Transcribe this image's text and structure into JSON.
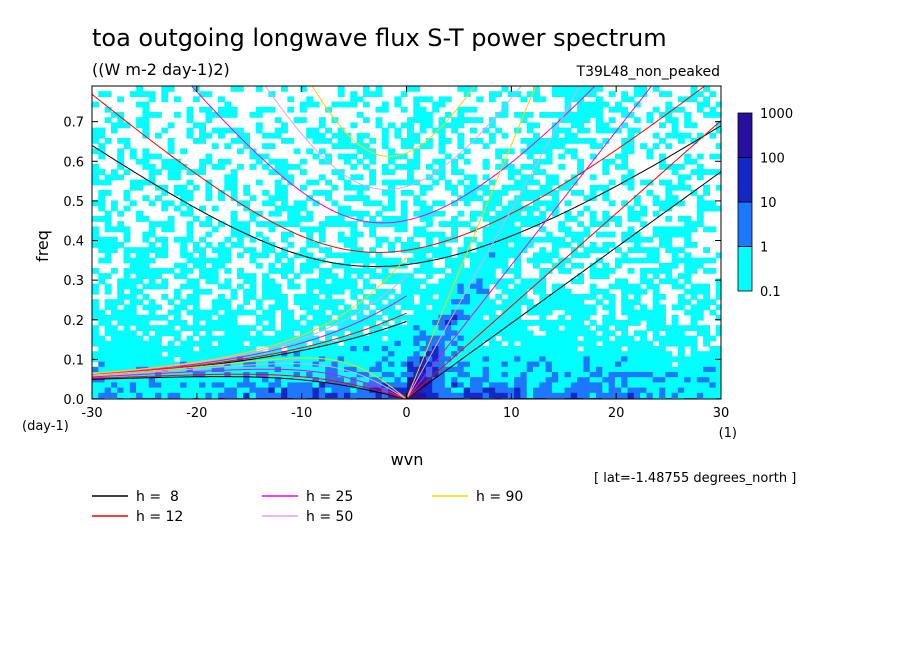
{
  "chart_data": {
    "type": "heatmap",
    "title": "toa outgoing longwave flux S-T power spectrum",
    "subtitle": "((W m-2 day-1)2)",
    "experiment": "T39L48_non_peaked",
    "xlabel": "wvn",
    "ylabel": "freq",
    "x_unit": "(1)",
    "y_unit": "(day-1)",
    "xlim": [
      -30,
      30
    ],
    "ylim": [
      0,
      0.79
    ],
    "x_ticks": [
      {
        "value": -30,
        "label": "-30"
      },
      {
        "value": -20,
        "label": "-20"
      },
      {
        "value": -10,
        "label": "-10"
      },
      {
        "value": 0,
        "label": "0"
      },
      {
        "value": 10,
        "label": "10"
      },
      {
        "value": 20,
        "label": "20"
      },
      {
        "value": 30,
        "label": "30"
      }
    ],
    "y_ticks": [
      {
        "value": 0.0,
        "label": "0.0"
      },
      {
        "value": 0.1,
        "label": "0.1"
      },
      {
        "value": 0.2,
        "label": "0.2"
      },
      {
        "value": 0.3,
        "label": "0.3"
      },
      {
        "value": 0.4,
        "label": "0.4"
      },
      {
        "value": 0.5,
        "label": "0.5"
      },
      {
        "value": 0.6,
        "label": "0.6"
      },
      {
        "value": 0.7,
        "label": "0.7"
      }
    ],
    "colorbar": {
      "levels": [
        "0.1",
        "1",
        "10",
        "100",
        "1000"
      ],
      "colors": [
        "#00ffff",
        "#1e78ff",
        "#1428c8",
        "#280fa0"
      ]
    },
    "dispersion_curves": [
      {
        "label": "h =  8",
        "h": 8,
        "color": "#000000"
      },
      {
        "label": "h = 12",
        "h": 12,
        "color": "#ff0000"
      },
      {
        "label": "h = 25",
        "h": 25,
        "color": "#ff00c8"
      },
      {
        "label": "h = 50",
        "h": 50,
        "color": "#e6a0f0"
      },
      {
        "label": "h = 90",
        "h": 90,
        "color": "#ffd200"
      }
    ],
    "grid": false,
    "legend_placement": "bottom",
    "annotation": "[ lat=-1.48755 degrees_north ]"
  }
}
